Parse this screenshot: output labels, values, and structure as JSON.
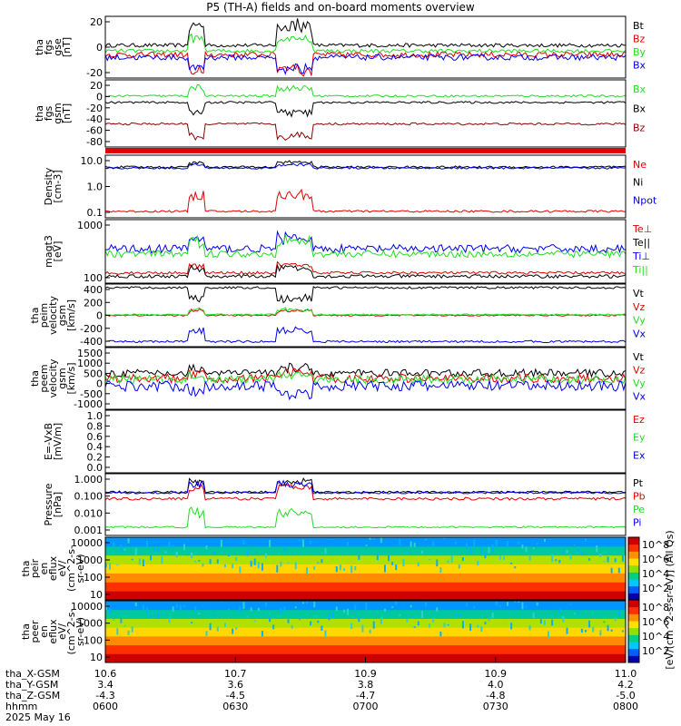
{
  "title": "P5 (TH-A) fields and on-board moments overview",
  "colors": {
    "black": "#000000",
    "red": "#e00000",
    "green": "#22dd22",
    "blue": "#0000ee",
    "darkred": "#8b0000"
  },
  "chart_data": [
    {
      "id": "fgs_gse",
      "type": "line",
      "ylabel": [
        "tha",
        "fgs",
        "gse",
        "[nT]"
      ],
      "yticks": [
        "20",
        "0",
        "-20"
      ],
      "yrange": [
        -28,
        38
      ],
      "series": [
        {
          "name": "Bt",
          "color": "#000000",
          "base": 7,
          "noise": 2,
          "burst": 28
        },
        {
          "name": "Bz",
          "color": "#e00000",
          "base": -3,
          "noise": 3,
          "burst": -22
        },
        {
          "name": "By",
          "color": "#22dd22",
          "base": 1,
          "noise": 2,
          "burst": 18
        },
        {
          "name": "Bx",
          "color": "#0000ee",
          "base": -6,
          "noise": 3,
          "burst": -15
        }
      ]
    },
    {
      "id": "fgs_gsm",
      "type": "line",
      "ylabel": [
        "tha",
        "fgs",
        "gsm",
        "[nT]"
      ],
      "yticks": [
        "20",
        "0",
        "-20",
        "-40",
        "-60",
        "-80"
      ],
      "yrange": [
        -95,
        30
      ],
      "series": [
        {
          "name": "Bx",
          "color": "#22dd22",
          "base": 0,
          "noise": 2,
          "burst": 20
        },
        {
          "name": "Bx",
          "color": "#000000",
          "base": -12,
          "noise": 2,
          "burst": -25
        },
        {
          "name": "Bz",
          "color": "#8b0000",
          "base": -52,
          "noise": 2,
          "burst": -30
        }
      ]
    },
    {
      "id": "density",
      "type": "line",
      "log": true,
      "ylabel": [
        "Density",
        "[cm-3]"
      ],
      "yticks": [
        "10.0",
        "1.0",
        "0.1"
      ],
      "yrange": [
        -1.3,
        1.6
      ],
      "series": [
        {
          "name": "Ne",
          "color": "#e00000",
          "base": -1.0,
          "noise": 0.05,
          "burst": 1.0
        },
        {
          "name": "Ni",
          "color": "#000000",
          "base": 1.05,
          "noise": 0.05,
          "burst": 0.3
        },
        {
          "name": "Npot",
          "color": "#0000ee",
          "base": 1.0,
          "noise": 0.04,
          "burst": 0.2
        }
      ]
    },
    {
      "id": "temperature",
      "type": "line",
      "log": true,
      "ylabel": [
        "magt3",
        "[eV]"
      ],
      "yticks": [
        "1000",
        "100"
      ],
      "yrange": [
        1.3,
        3.15
      ],
      "series": [
        {
          "name": "Te⊥",
          "color": "#e00000",
          "base": 1.6,
          "noise": 0.04,
          "burst": 0.3
        },
        {
          "name": "Te||",
          "color": "#000000",
          "base": 1.5,
          "noise": 0.05,
          "burst": 0.3
        },
        {
          "name": "Ti⊥",
          "color": "#0000ee",
          "base": 2.3,
          "noise": 0.12,
          "burst": 0.4
        },
        {
          "name": "Ti||",
          "color": "#22dd22",
          "base": 2.15,
          "noise": 0.1,
          "burst": 0.5
        }
      ]
    },
    {
      "id": "peim_velocity",
      "type": "line",
      "ylabel": [
        "tha",
        "peim",
        "velocity",
        "gsm",
        "[km/s]"
      ],
      "yticks": [
        "400",
        "200",
        "0",
        "-200",
        "-400"
      ],
      "yrange": [
        -430,
        430
      ],
      "series": [
        {
          "name": "Vt",
          "color": "#000000",
          "base": 380,
          "noise": 15,
          "burst": -200
        },
        {
          "name": "Vz",
          "color": "#e00000",
          "base": 0,
          "noise": 10,
          "burst": 80
        },
        {
          "name": "Vy",
          "color": "#22dd22",
          "base": 10,
          "noise": 10,
          "burst": 90
        },
        {
          "name": "Vx",
          "color": "#0000ee",
          "base": -360,
          "noise": 15,
          "burst": 200
        }
      ]
    },
    {
      "id": "peem_velocity",
      "type": "line",
      "ylabel": [
        "tha",
        "peem",
        "velocity",
        "gsm",
        "[km/s]"
      ],
      "yticks": [
        "1500",
        "1000",
        "500",
        "0",
        "-500",
        "-1000"
      ],
      "yrange": [
        -1300,
        1600
      ],
      "series": [
        {
          "name": "Vt",
          "color": "#000000",
          "base": 400,
          "noise": 180,
          "burst": 300
        },
        {
          "name": "Vz",
          "color": "#e00000",
          "base": 150,
          "noise": 200,
          "burst": 300
        },
        {
          "name": "Vy",
          "color": "#22dd22",
          "base": 100,
          "noise": 200,
          "burst": 300
        },
        {
          "name": "Vx",
          "color": "#0000ee",
          "base": -200,
          "noise": 250,
          "burst": -400
        }
      ]
    },
    {
      "id": "efield",
      "type": "line",
      "empty": true,
      "ylabel": [
        "E=-VxB",
        "[mV/m]"
      ],
      "yticks": [
        "1.0",
        "0.8",
        "0.6",
        "0.4",
        "0.2",
        "0.0"
      ],
      "yrange": [
        0,
        1
      ],
      "series": [
        {
          "name": "Ez",
          "color": "#e00000"
        },
        {
          "name": "Ey",
          "color": "#22dd22"
        },
        {
          "name": "Ex",
          "color": "#0000ee"
        }
      ]
    },
    {
      "id": "pressure",
      "type": "line",
      "log": true,
      "ylabel": [
        "Pressure",
        "[nPa]"
      ],
      "yticks": [
        "1.000",
        "0.100",
        "0.010",
        "0.001"
      ],
      "yrange": [
        -3.4,
        0.3
      ],
      "series": [
        {
          "name": "Pt",
          "color": "#000000",
          "base": -0.8,
          "noise": 0.06,
          "burst": 0.8
        },
        {
          "name": "Pb",
          "color": "#e00000",
          "base": -1.2,
          "noise": 0.08,
          "burst": 0.9
        },
        {
          "name": "Pe",
          "color": "#22dd22",
          "base": -2.9,
          "noise": 0.05,
          "burst": 1.2
        },
        {
          "name": "Pi",
          "color": "#0000ee",
          "base": -0.85,
          "noise": 0.05,
          "burst": 0.7
        }
      ]
    },
    {
      "id": "peir_spec",
      "type": "heatmap",
      "ylabel": [
        "tha",
        "peir",
        "en",
        "eflux",
        "eV/",
        "(cm^2-s-",
        "sr-eV)"
      ],
      "yticks": [
        "10000",
        "1000",
        "100",
        "10"
      ]
    },
    {
      "id": "peer_spec",
      "type": "heatmap",
      "ylabel": [
        "tha",
        "peer",
        "en",
        "eflux",
        "eV/",
        "(cm^2-s-",
        "sr-eV)"
      ],
      "yticks": [
        "10000",
        "1000",
        "100",
        "10"
      ]
    }
  ],
  "colorbar": {
    "label": "[eV/(cm^2-s-sr-eV)] (All Qs)",
    "ticks": [
      "10^8",
      "10^6",
      "10^4",
      "10^2",
      "10^8",
      "10^6",
      "10^4",
      "10^2"
    ]
  },
  "x_axis": {
    "ticks": [
      {
        "rows": [
          "10.6",
          "3.4",
          "-4.3",
          "0600"
        ]
      },
      {
        "rows": [
          "10.7",
          "3.6",
          "-4.5",
          "0630"
        ]
      },
      {
        "rows": [
          "10.9",
          "3.8",
          "-4.7",
          "0700"
        ]
      },
      {
        "rows": [
          "10.9",
          "4.0",
          "-4.8",
          "0730"
        ]
      },
      {
        "rows": [
          "11.0",
          "4.2",
          "-5.0",
          "0800"
        ]
      }
    ],
    "row_labels": [
      "tha_X-GSM",
      "tha_Y-GSM",
      "tha_Z-GSM",
      "hhmm"
    ],
    "date": "2025 May 16"
  }
}
